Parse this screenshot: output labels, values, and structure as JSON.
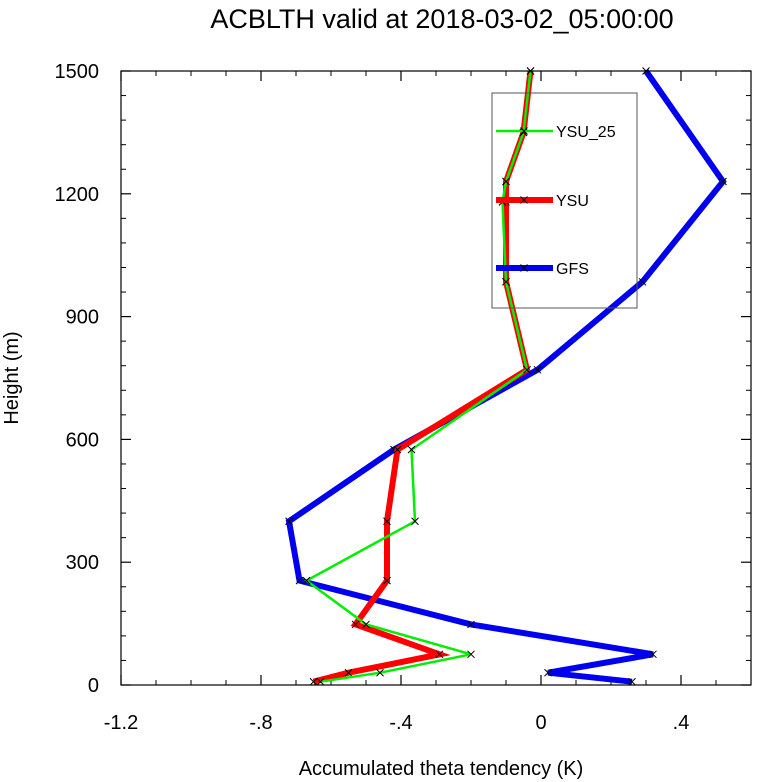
{
  "chart_data": {
    "type": "line",
    "title": "ACBLTH valid at 2018-03-02_05:00:00",
    "xlabel": "Accumulated theta tendency (K)",
    "ylabel": "Height (m)",
    "xlim": [
      -1.2,
      0.6
    ],
    "ylim": [
      0,
      1500
    ],
    "x_ticks": [
      -1.2,
      -0.8,
      -0.4,
      0,
      0.4
    ],
    "x_tick_labels": [
      "-1.2",
      "-.8",
      "-.4",
      "0",
      ".4"
    ],
    "y_ticks": [
      0,
      300,
      600,
      900,
      1200,
      1500
    ],
    "y_tick_labels": [
      "0",
      "300",
      "600",
      "900",
      "1200",
      "1500"
    ],
    "grid": false,
    "legend_position": "top-right",
    "series": [
      {
        "name": "YSU_25",
        "color": "#00ee00",
        "line_width": 2.5,
        "x": [
          -0.63,
          -0.46,
          -0.2,
          -0.5,
          -0.67,
          -0.36,
          -0.37,
          -0.04,
          -0.1,
          -0.11,
          -0.1,
          -0.05,
          -0.03
        ],
        "y": [
          8,
          30,
          75,
          148,
          255,
          400,
          575,
          770,
          985,
          1180,
          1230,
          1350,
          1500
        ]
      },
      {
        "name": "YSU",
        "color": "#ff0000",
        "line_width": 6,
        "x": [
          -0.65,
          -0.55,
          -0.29,
          -0.53,
          -0.44,
          -0.44,
          -0.41,
          -0.04,
          -0.1,
          -0.1,
          -0.1,
          -0.05,
          -0.03
        ],
        "y": [
          8,
          30,
          75,
          148,
          255,
          400,
          575,
          770,
          985,
          1180,
          1230,
          1350,
          1500
        ]
      },
      {
        "name": "GFS",
        "color": "#0000ee",
        "line_width": 6,
        "x": [
          0.26,
          0.02,
          0.32,
          -0.2,
          -0.69,
          -0.72,
          -0.42,
          -0.01,
          0.29,
          0.52,
          0.3
        ],
        "y": [
          8,
          30,
          75,
          148,
          255,
          400,
          575,
          770,
          985,
          1230,
          1500
        ]
      }
    ]
  }
}
